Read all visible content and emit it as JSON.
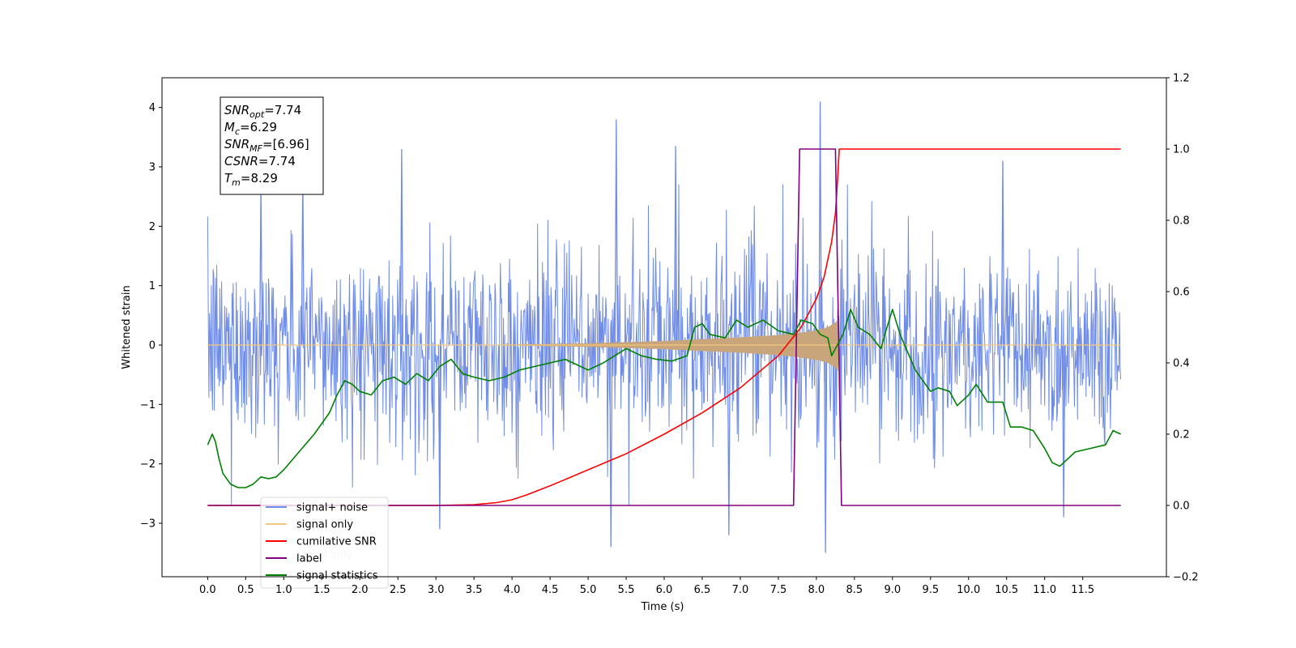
{
  "chart_data": {
    "type": "line",
    "xlabel": "Time (s)",
    "ylabel_left": "Whitened strain",
    "ylabel_right": "",
    "xlim": [
      -0.6,
      12.6
    ],
    "ylim_left": [
      -3.9,
      4.5
    ],
    "ylim_right": [
      -0.2,
      1.2
    ],
    "x_ticks": [
      0.0,
      0.5,
      1.0,
      1.5,
      2.0,
      2.5,
      3.0,
      3.5,
      4.0,
      4.5,
      5.0,
      5.5,
      6.0,
      6.5,
      7.0,
      7.5,
      8.0,
      8.5,
      9.0,
      9.5,
      10.0,
      10.5,
      11.0,
      11.5
    ],
    "x_tick_labels": [
      "0.0",
      "0.5",
      "1.0",
      "1.5",
      "2.0",
      "2.5",
      "3.0",
      "3.5",
      "4.0",
      "4.5",
      "5.0",
      "5.5",
      "6.0",
      "6.5",
      "7.0",
      "7.5",
      "8.0",
      "8.5",
      "9.0",
      "9.5",
      "10.0",
      "10.5",
      "11.0",
      "11.5"
    ],
    "y_left_ticks": [
      -3,
      -2,
      -1,
      0,
      1,
      2,
      3,
      4
    ],
    "y_left_tick_labels": [
      "−3",
      "−2",
      "−1",
      "0",
      "1",
      "2",
      "3",
      "4"
    ],
    "y_right_ticks": [
      -0.2,
      0.0,
      0.2,
      0.4,
      0.6,
      0.8,
      1.0,
      1.2
    ],
    "y_right_tick_labels": [
      "−0.2",
      "0.0",
      "0.2",
      "0.4",
      "0.6",
      "0.8",
      "1.0",
      "1.2"
    ],
    "grid": false,
    "legend_position": "lower-left",
    "series": [
      {
        "name": "signal+ noise",
        "axis": "left",
        "color": "#6f8ce6",
        "kind": "noise",
        "x_range": [
          0.0,
          12.0
        ],
        "core_envelope": 1.7,
        "peak_envelope": 2.5,
        "notable_extremes": [
          {
            "x": 0.7,
            "y": 2.7
          },
          {
            "x": 1.25,
            "y": 2.9
          },
          {
            "x": 2.55,
            "y": 3.3
          },
          {
            "x": 3.05,
            "y": -3.1
          },
          {
            "x": 5.3,
            "y": -3.4
          },
          {
            "x": 5.37,
            "y": 3.8
          },
          {
            "x": 6.15,
            "y": 3.35
          },
          {
            "x": 6.85,
            "y": -3.2
          },
          {
            "x": 8.05,
            "y": 4.1
          },
          {
            "x": 8.12,
            "y": -3.5
          },
          {
            "x": 10.45,
            "y": 3.1
          },
          {
            "x": 11.25,
            "y": -2.9
          }
        ]
      },
      {
        "name": "signal only",
        "axis": "left",
        "color": "#f5c77e",
        "fill_color": "#c8a57a",
        "kind": "chirp",
        "x_range": [
          0.0,
          12.0
        ],
        "amplitude_points": [
          [
            3.5,
            0.0
          ],
          [
            4.0,
            0.01
          ],
          [
            5.0,
            0.03
          ],
          [
            6.0,
            0.07
          ],
          [
            6.5,
            0.1
          ],
          [
            7.0,
            0.13
          ],
          [
            7.5,
            0.17
          ],
          [
            7.8,
            0.21
          ],
          [
            8.0,
            0.25
          ],
          [
            8.15,
            0.3
          ],
          [
            8.25,
            0.38
          ],
          [
            8.29,
            0.45
          ],
          [
            8.3,
            0.0
          ]
        ]
      },
      {
        "name": "cumilative SNR",
        "axis": "right",
        "color": "#ff0000",
        "points": [
          [
            0.0,
            0.0
          ],
          [
            3.0,
            0.0
          ],
          [
            3.5,
            0.002
          ],
          [
            3.8,
            0.008
          ],
          [
            4.0,
            0.016
          ],
          [
            4.2,
            0.03
          ],
          [
            4.5,
            0.055
          ],
          [
            5.0,
            0.1
          ],
          [
            5.5,
            0.145
          ],
          [
            6.0,
            0.2
          ],
          [
            6.5,
            0.26
          ],
          [
            7.0,
            0.33
          ],
          [
            7.5,
            0.42
          ],
          [
            7.8,
            0.5
          ],
          [
            8.0,
            0.58
          ],
          [
            8.1,
            0.64
          ],
          [
            8.2,
            0.74
          ],
          [
            8.25,
            0.82
          ],
          [
            8.28,
            0.92
          ],
          [
            8.3,
            1.0
          ],
          [
            12.0,
            1.0
          ]
        ]
      },
      {
        "name": "label",
        "axis": "right",
        "color": "#800080",
        "points": [
          [
            0.0,
            0.0
          ],
          [
            7.7,
            0.0
          ],
          [
            7.78,
            1.0
          ],
          [
            8.25,
            1.0
          ],
          [
            8.33,
            0.0
          ],
          [
            12.0,
            0.0
          ]
        ]
      },
      {
        "name": "signal statistics",
        "axis": "right",
        "color": "#008000",
        "points": [
          [
            0.0,
            0.17
          ],
          [
            0.06,
            0.2
          ],
          [
            0.1,
            0.18
          ],
          [
            0.15,
            0.13
          ],
          [
            0.2,
            0.09
          ],
          [
            0.3,
            0.06
          ],
          [
            0.4,
            0.05
          ],
          [
            0.5,
            0.05
          ],
          [
            0.6,
            0.06
          ],
          [
            0.7,
            0.08
          ],
          [
            0.8,
            0.075
          ],
          [
            0.9,
            0.08
          ],
          [
            1.0,
            0.1
          ],
          [
            1.2,
            0.15
          ],
          [
            1.4,
            0.2
          ],
          [
            1.6,
            0.26
          ],
          [
            1.7,
            0.31
          ],
          [
            1.8,
            0.35
          ],
          [
            1.9,
            0.34
          ],
          [
            2.0,
            0.32
          ],
          [
            2.15,
            0.31
          ],
          [
            2.3,
            0.35
          ],
          [
            2.45,
            0.36
          ],
          [
            2.6,
            0.34
          ],
          [
            2.75,
            0.37
          ],
          [
            2.9,
            0.35
          ],
          [
            3.05,
            0.39
          ],
          [
            3.2,
            0.41
          ],
          [
            3.35,
            0.37
          ],
          [
            3.5,
            0.36
          ],
          [
            3.7,
            0.35
          ],
          [
            3.9,
            0.36
          ],
          [
            4.1,
            0.38
          ],
          [
            4.3,
            0.39
          ],
          [
            4.5,
            0.4
          ],
          [
            4.7,
            0.41
          ],
          [
            4.9,
            0.39
          ],
          [
            5.0,
            0.38
          ],
          [
            5.2,
            0.4
          ],
          [
            5.35,
            0.42
          ],
          [
            5.5,
            0.44
          ],
          [
            5.7,
            0.42
          ],
          [
            5.9,
            0.41
          ],
          [
            6.1,
            0.405
          ],
          [
            6.3,
            0.42
          ],
          [
            6.4,
            0.5
          ],
          [
            6.5,
            0.51
          ],
          [
            6.6,
            0.48
          ],
          [
            6.8,
            0.47
          ],
          [
            6.95,
            0.52
          ],
          [
            7.1,
            0.5
          ],
          [
            7.3,
            0.52
          ],
          [
            7.5,
            0.49
          ],
          [
            7.7,
            0.48
          ],
          [
            7.8,
            0.52
          ],
          [
            7.95,
            0.51
          ],
          [
            8.05,
            0.48
          ],
          [
            8.15,
            0.47
          ],
          [
            8.2,
            0.42
          ],
          [
            8.35,
            0.48
          ],
          [
            8.45,
            0.55
          ],
          [
            8.55,
            0.5
          ],
          [
            8.7,
            0.48
          ],
          [
            8.85,
            0.44
          ],
          [
            8.9,
            0.48
          ],
          [
            9.0,
            0.55
          ],
          [
            9.1,
            0.48
          ],
          [
            9.3,
            0.38
          ],
          [
            9.5,
            0.32
          ],
          [
            9.6,
            0.33
          ],
          [
            9.75,
            0.32
          ],
          [
            9.85,
            0.28
          ],
          [
            10.0,
            0.31
          ],
          [
            10.1,
            0.34
          ],
          [
            10.25,
            0.29
          ],
          [
            10.45,
            0.29
          ],
          [
            10.55,
            0.22
          ],
          [
            10.7,
            0.22
          ],
          [
            10.85,
            0.21
          ],
          [
            11.0,
            0.16
          ],
          [
            11.1,
            0.12
          ],
          [
            11.2,
            0.11
          ],
          [
            11.4,
            0.15
          ],
          [
            11.6,
            0.16
          ],
          [
            11.8,
            0.17
          ],
          [
            11.9,
            0.21
          ],
          [
            12.0,
            0.2
          ]
        ]
      }
    ],
    "legend": [
      {
        "name": "signal+ noise",
        "color": "#6f8ce6"
      },
      {
        "name": "signal only",
        "color": "#f5c77e"
      },
      {
        "name": "cumilative SNR",
        "color": "#ff0000"
      },
      {
        "name": "label",
        "color": "#800080"
      },
      {
        "name": "signal statistics",
        "color": "#008000"
      }
    ],
    "ghost_legend": [
      "signal only",
      "signal only"
    ],
    "annotation_box": {
      "lines": [
        {
          "base": "SNR",
          "sub": "opt",
          "value": "=7.74"
        },
        {
          "base": "M",
          "sub": "c",
          "value": "=6.29"
        },
        {
          "base": "SNR",
          "sub": "MF",
          "value": "=[6.96]"
        },
        {
          "base": "CSNR",
          "sub": "",
          "value": "=7.74"
        },
        {
          "base": "T",
          "sub": "m",
          "value": "=8.29"
        }
      ]
    }
  }
}
